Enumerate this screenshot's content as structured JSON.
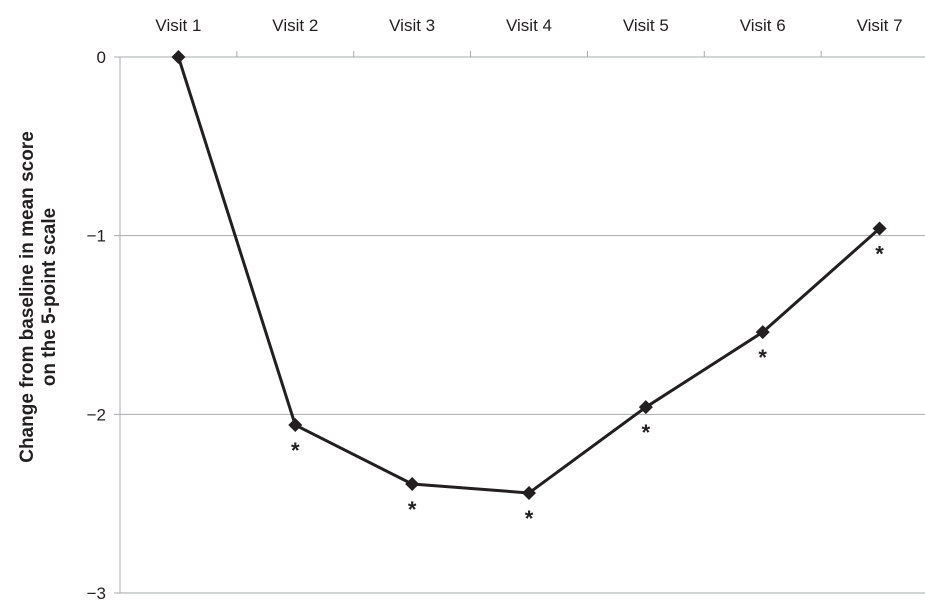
{
  "chart_data": {
    "type": "line",
    "categories": [
      "Visit 1",
      "Visit 2",
      "Visit 3",
      "Visit 4",
      "Visit 5",
      "Visit 6",
      "Visit 7"
    ],
    "series": [
      {
        "values": [
          0,
          -2.06,
          -2.39,
          -2.44,
          -1.96,
          -1.54,
          -0.96
        ]
      }
    ],
    "significance_markers": [
      "",
      "*",
      "*",
      "*",
      "*",
      "*",
      "*"
    ],
    "ylabel_lines": [
      "Change from baseline in mean score",
      "on the 5-point scale"
    ],
    "yticks": [
      0,
      -1,
      -2,
      -3
    ],
    "ytick_labels": [
      "0",
      "−1",
      "−2",
      "−3"
    ],
    "ylim": [
      -3,
      0
    ],
    "x_axis_position": "top",
    "grid": true,
    "marker": "diamond",
    "colors": {
      "line": "#231f20",
      "grid": "#a7a9ac",
      "text": "#231f20"
    }
  }
}
